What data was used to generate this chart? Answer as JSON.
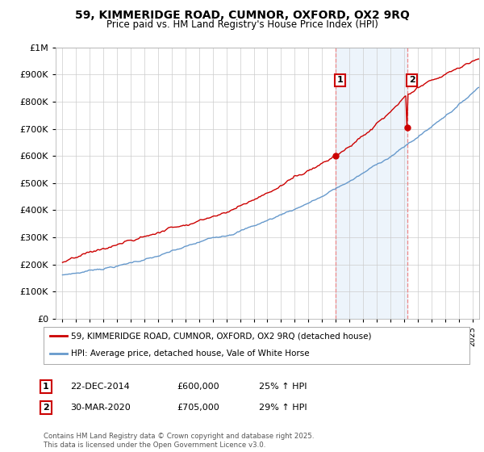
{
  "title": "59, KIMMERIDGE ROAD, CUMNOR, OXFORD, OX2 9RQ",
  "subtitle": "Price paid vs. HM Land Registry's House Price Index (HPI)",
  "legend_line1": "59, KIMMERIDGE ROAD, CUMNOR, OXFORD, OX2 9RQ (detached house)",
  "legend_line2": "HPI: Average price, detached house, Vale of White Horse",
  "sale1_label": "1",
  "sale1_date": "22-DEC-2014",
  "sale1_price": "£600,000",
  "sale1_hpi": "25% ↑ HPI",
  "sale2_label": "2",
  "sale2_date": "30-MAR-2020",
  "sale2_price": "£705,000",
  "sale2_hpi": "29% ↑ HPI",
  "footer": "Contains HM Land Registry data © Crown copyright and database right 2025.\nThis data is licensed under the Open Government Licence v3.0.",
  "red_color": "#cc0000",
  "blue_color": "#6699cc",
  "dashed_color": "#ee8888",
  "shaded_color": "#cce0f5",
  "background_color": "#ffffff",
  "grid_color": "#cccccc",
  "ylim": [
    0,
    1000000
  ],
  "yticks": [
    0,
    100000,
    200000,
    300000,
    400000,
    500000,
    600000,
    700000,
    800000,
    900000,
    1000000
  ],
  "sale1_x": 2014.97,
  "sale1_y": 600000,
  "sale2_x": 2020.25,
  "sale2_y": 705000,
  "shade_x1": 2014.97,
  "shade_x2": 2020.25,
  "xlim": [
    1994.5,
    2025.5
  ]
}
